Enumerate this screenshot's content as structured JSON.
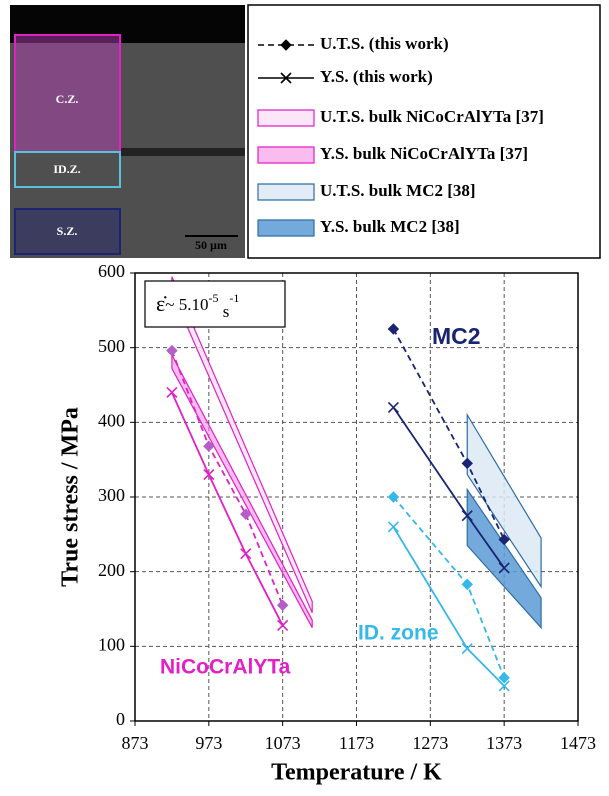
{
  "micrograph": {
    "zones": [
      "C.Z.",
      "ID.Z.",
      "S.Z."
    ],
    "scale_bar": "50 µm"
  },
  "chart_data": {
    "type": "line",
    "x_label": "Temperature / K",
    "y_label": "True stress / MPa",
    "xlim": [
      873,
      1473
    ],
    "xticks": [
      873,
      973,
      1073,
      1173,
      1273,
      1373,
      1473
    ],
    "ylim": [
      0,
      600
    ],
    "yticks": [
      0,
      100,
      200,
      300,
      400,
      500,
      600
    ],
    "grid": true,
    "strain_rate": {
      "symbol": "ε̇",
      "text": "~  5.10",
      "exp1": "-5",
      "unit": " s",
      "exp2": "-1"
    },
    "annotations": [
      {
        "text": "NiCoCrAlYTa",
        "color": "#e320c6"
      },
      {
        "text": "MC2",
        "color": "#1a2472"
      },
      {
        "text": "ID. zone",
        "color": "#35b8ea"
      }
    ],
    "series": [
      {
        "kind": "uts",
        "color": "#e320c6",
        "marker_fill": "#b45fc8",
        "x": [
          923,
          973,
          1023,
          1073
        ],
        "values": [
          496,
          368,
          277,
          155
        ]
      },
      {
        "kind": "ys",
        "color": "#e320c6",
        "x": [
          923,
          973,
          1023,
          1073
        ],
        "values": [
          440,
          330,
          224,
          128
        ]
      },
      {
        "kind": "uts",
        "color": "#1a2472",
        "marker_fill": "#1a2472",
        "x": [
          1223,
          1323,
          1373
        ],
        "values": [
          525,
          345,
          243
        ]
      },
      {
        "kind": "ys",
        "color": "#1a2472",
        "x": [
          1223,
          1323,
          1373
        ],
        "values": [
          420,
          275,
          205
        ]
      },
      {
        "kind": "uts",
        "color": "#35b8ea",
        "marker_fill": "#35b8ea",
        "x": [
          1223,
          1323,
          1373
        ],
        "values": [
          300,
          183,
          58
        ]
      },
      {
        "kind": "ys",
        "color": "#35b8ea",
        "x": [
          1223,
          1323,
          1373
        ],
        "values": [
          260,
          97,
          47
        ]
      }
    ],
    "bands": [
      {
        "name": "U.T.S. bulk NiCoCrAlYTa [37]",
        "color": "#e320c6",
        "fill": "#fbe3f7",
        "x": [
          923,
          1113
        ],
        "lower": [
          575,
          145
        ],
        "upper": [
          595,
          160
        ]
      },
      {
        "name": "Y.S. bulk NiCoCrAlYTa [37]",
        "color": "#e320c6",
        "fill": "#f38fe3",
        "x": [
          923,
          1113
        ],
        "lower": [
          472,
          125
        ],
        "upper": [
          490,
          135
        ]
      },
      {
        "name": "U.T.S. bulk MC2 [38]",
        "color": "#2e6da4",
        "fill": "#dce9f5",
        "x": [
          1323,
          1423
        ],
        "lower": [
          330,
          180
        ],
        "upper": [
          410,
          245
        ]
      },
      {
        "name": "Y.S. bulk MC2 [38]",
        "color": "#2e6da4",
        "fill": "#5b9bd5",
        "x": [
          1323,
          1423
        ],
        "lower": [
          235,
          125
        ],
        "upper": [
          310,
          165
        ]
      }
    ],
    "legend": [
      "U.T.S. (this work)",
      "Y.S. (this work)"
    ]
  }
}
